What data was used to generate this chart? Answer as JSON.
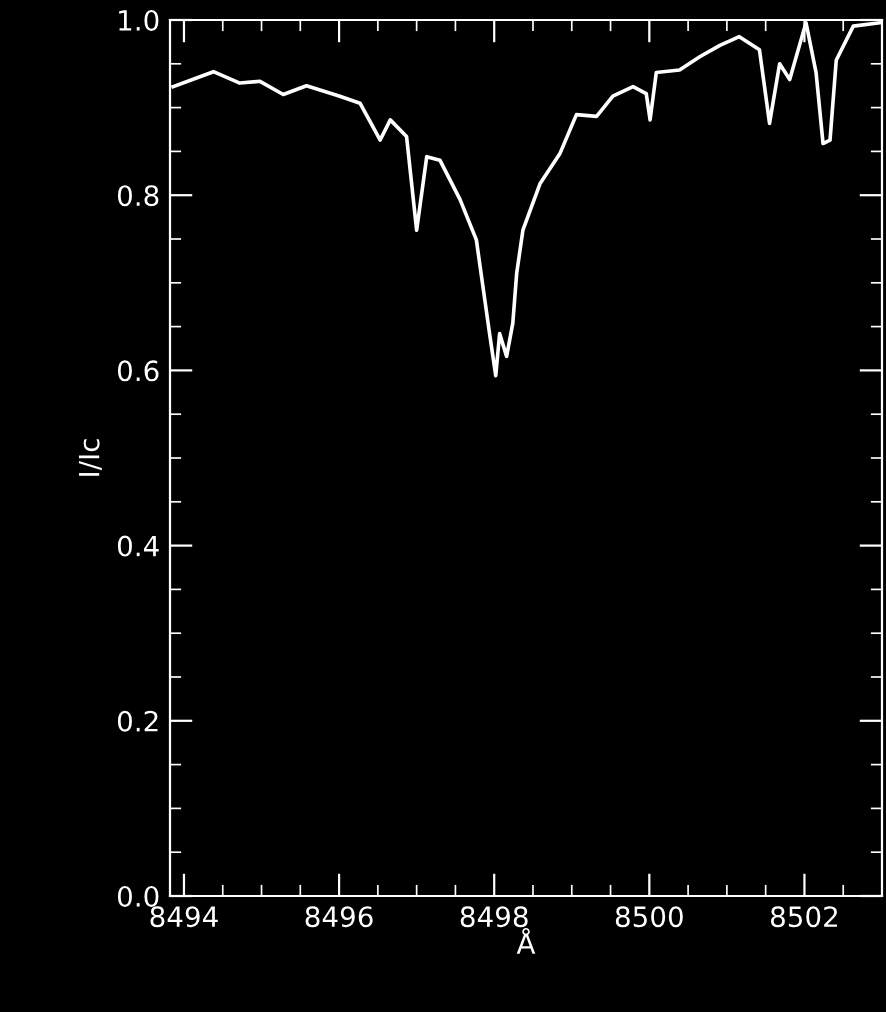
{
  "chart_data": {
    "type": "line",
    "xlabel": "Å",
    "ylabel": "I/Ic",
    "xlim": [
      8493.82,
      8503.0
    ],
    "xticks": [
      8494,
      8496,
      8498,
      8500,
      8502
    ],
    "ylim": [
      0.0,
      1.0
    ],
    "yticks": [
      {
        "value": 0.0,
        "label": "0.0"
      },
      {
        "value": 0.2,
        "label": "0.2"
      },
      {
        "value": 0.4,
        "label": "0.4"
      },
      {
        "value": 0.6,
        "label": "0.6"
      },
      {
        "value": 0.8,
        "label": "0.8"
      },
      {
        "value": 1.0,
        "label": "1.0"
      }
    ],
    "grid": false,
    "legend": false,
    "marker": "none",
    "line_style": "solid",
    "series": [
      {
        "color": "#ffffff",
        "x": [
          8493.86,
          8494.38,
          8494.72,
          8494.98,
          8495.28,
          8495.58,
          8496.01,
          8496.27,
          8496.53,
          8496.66,
          8496.87,
          8497.0,
          8497.13,
          8497.3,
          8497.56,
          8497.77,
          8497.94,
          8498.02,
          8498.07,
          8498.16,
          8498.24,
          8498.29,
          8498.37,
          8498.59,
          8498.85,
          8499.06,
          8499.32,
          8499.53,
          8499.79,
          8499.96,
          8500.01,
          8500.09,
          8500.39,
          8500.65,
          8500.91,
          8501.16,
          8501.42,
          8501.55,
          8501.68,
          8501.81,
          8502.02,
          8502.15,
          8502.24,
          8502.33,
          8502.41,
          8502.63,
          8502.99
        ],
        "values": [
          0.924,
          0.941,
          0.928,
          0.93,
          0.915,
          0.925,
          0.913,
          0.905,
          0.863,
          0.886,
          0.867,
          0.76,
          0.844,
          0.84,
          0.795,
          0.749,
          0.642,
          0.594,
          0.642,
          0.616,
          0.654,
          0.711,
          0.76,
          0.813,
          0.848,
          0.892,
          0.89,
          0.913,
          0.924,
          0.916,
          0.886,
          0.94,
          0.943,
          0.958,
          0.971,
          0.981,
          0.966,
          0.882,
          0.95,
          0.932,
          0.997,
          0.94,
          0.859,
          0.863,
          0.954,
          0.993,
          0.997
        ]
      }
    ]
  }
}
